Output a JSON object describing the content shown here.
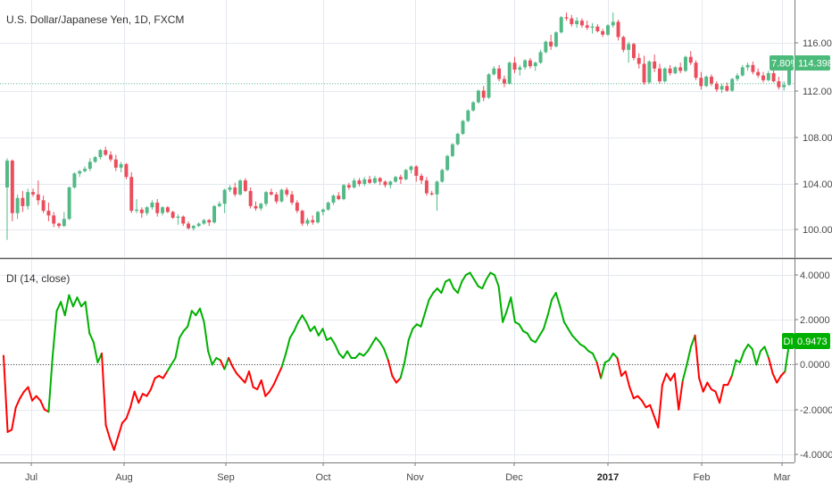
{
  "colors": {
    "up": "#53b987",
    "down": "#eb4d5c",
    "di_up": "#00b000",
    "di_down": "#ff0000",
    "tag_green": "#4cba7a",
    "di_tag": "#00b000"
  },
  "price_title": "U.S. Dollar/Japanese Yen, 1D, FXCM",
  "di_title": "DI (14, close)",
  "price_tag": {
    "pct": "7.80%",
    "value": "114.398"
  },
  "di_tag": {
    "label": "DI",
    "value": "0.9473"
  },
  "price_ticks": [
    "116.000",
    "112.000",
    "108.000",
    "104.000",
    "100.000"
  ],
  "di_ticks": [
    "4.0000",
    "2.0000",
    "0.0000",
    "-2.0000",
    "-4.0000"
  ],
  "months": [
    {
      "label": "Jul",
      "bold": false
    },
    {
      "label": "Aug",
      "bold": false
    },
    {
      "label": "Sep",
      "bold": false
    },
    {
      "label": "Oct",
      "bold": false
    },
    {
      "label": "Nov",
      "bold": false
    },
    {
      "label": "Dec",
      "bold": false
    },
    {
      "label": "2017",
      "bold": true
    },
    {
      "label": "Feb",
      "bold": false
    },
    {
      "label": "Mar",
      "bold": false
    }
  ],
  "chart_data": [
    {
      "type": "candlestick",
      "title": "U.S. Dollar/Japanese Yen, 1D, FXCM",
      "ylim": [
        98.0,
        119.5
      ],
      "reference_level": 112.5,
      "last_value": 114.398,
      "candles": [
        [
          103.6,
          106.1,
          99.1,
          105.9
        ],
        [
          105.9,
          106.0,
          100.7,
          101.4
        ],
        [
          101.4,
          103.0,
          100.9,
          102.7
        ],
        [
          102.7,
          103.3,
          101.5,
          102.0
        ],
        [
          102.0,
          103.5,
          101.7,
          103.2
        ],
        [
          103.2,
          103.5,
          102.8,
          103.0
        ],
        [
          103.0,
          104.2,
          102.1,
          102.5
        ],
        [
          102.5,
          102.9,
          101.4,
          101.6
        ],
        [
          101.6,
          102.3,
          100.7,
          101.2
        ],
        [
          101.2,
          101.5,
          100.2,
          100.5
        ],
        [
          100.5,
          100.6,
          100.1,
          100.3
        ],
        [
          100.3,
          101.5,
          100.2,
          100.9
        ],
        [
          100.9,
          103.7,
          100.8,
          103.6
        ],
        [
          103.6,
          104.9,
          103.5,
          104.8
        ],
        [
          104.8,
          105.1,
          104.5,
          105.0
        ],
        [
          105.0,
          105.4,
          104.9,
          105.2
        ],
        [
          105.2,
          106.1,
          105.0,
          105.8
        ],
        [
          105.8,
          106.3,
          105.7,
          106.2
        ],
        [
          106.2,
          106.9,
          106.0,
          106.8
        ],
        [
          106.8,
          107.1,
          106.3,
          106.4
        ],
        [
          106.4,
          106.7,
          105.8,
          106.0
        ],
        [
          106.0,
          106.4,
          105.0,
          105.3
        ],
        [
          105.3,
          105.8,
          104.9,
          105.6
        ],
        [
          105.6,
          105.7,
          104.3,
          104.5
        ],
        [
          104.5,
          104.9,
          101.4,
          101.6
        ],
        [
          101.6,
          102.6,
          101.4,
          101.7
        ],
        [
          101.7,
          101.9,
          101.0,
          101.4
        ],
        [
          101.4,
          102.0,
          101.2,
          101.9
        ],
        [
          101.9,
          102.5,
          101.7,
          102.3
        ],
        [
          102.3,
          102.6,
          101.1,
          101.4
        ],
        [
          101.4,
          102.0,
          101.2,
          101.9
        ],
        [
          101.9,
          102.0,
          101.4,
          101.5
        ],
        [
          101.5,
          101.6,
          100.9,
          101.0
        ],
        [
          101.0,
          101.3,
          100.4,
          101.1
        ],
        [
          101.1,
          101.2,
          100.3,
          100.5
        ],
        [
          100.5,
          100.7,
          100.0,
          100.1
        ],
        [
          100.1,
          100.4,
          99.9,
          100.3
        ],
        [
          100.3,
          100.6,
          100.2,
          100.5
        ],
        [
          100.5,
          100.9,
          100.4,
          100.8
        ],
        [
          100.8,
          100.9,
          100.3,
          100.6
        ],
        [
          100.6,
          102.1,
          100.5,
          102.0
        ],
        [
          102.0,
          102.4,
          101.9,
          102.2
        ],
        [
          102.2,
          103.5,
          101.4,
          103.4
        ],
        [
          103.4,
          103.8,
          103.2,
          103.6
        ],
        [
          103.6,
          104.0,
          102.8,
          103.0
        ],
        [
          103.0,
          104.3,
          102.9,
          104.2
        ],
        [
          104.2,
          104.4,
          103.2,
          103.3
        ],
        [
          103.3,
          103.6,
          101.8,
          102.0
        ],
        [
          102.0,
          102.4,
          101.6,
          101.8
        ],
        [
          101.8,
          102.3,
          101.6,
          102.2
        ],
        [
          102.2,
          103.3,
          102.0,
          103.2
        ],
        [
          103.2,
          103.5,
          102.9,
          103.0
        ],
        [
          103.0,
          103.2,
          102.2,
          102.4
        ],
        [
          102.4,
          103.5,
          102.3,
          103.4
        ],
        [
          103.4,
          103.6,
          102.8,
          103.0
        ],
        [
          103.0,
          103.3,
          102.1,
          102.3
        ],
        [
          102.3,
          102.5,
          101.4,
          101.6
        ],
        [
          101.6,
          101.7,
          100.3,
          100.5
        ],
        [
          100.5,
          101.0,
          100.3,
          100.8
        ],
        [
          100.8,
          101.2,
          100.4,
          100.6
        ],
        [
          100.6,
          101.6,
          100.5,
          101.5
        ],
        [
          101.5,
          101.8,
          101.2,
          101.7
        ],
        [
          101.7,
          102.4,
          101.6,
          102.3
        ],
        [
          102.3,
          103.0,
          102.1,
          102.9
        ],
        [
          102.9,
          103.2,
          102.5,
          102.6
        ],
        [
          102.6,
          103.9,
          102.5,
          103.8
        ],
        [
          103.8,
          104.0,
          103.4,
          103.6
        ],
        [
          103.6,
          104.4,
          103.5,
          104.2
        ],
        [
          104.2,
          104.4,
          103.7,
          103.9
        ],
        [
          103.9,
          104.5,
          103.7,
          104.3
        ],
        [
          104.3,
          104.6,
          103.9,
          104.0
        ],
        [
          104.0,
          104.6,
          103.9,
          104.4
        ],
        [
          104.4,
          104.5,
          103.8,
          104.1
        ],
        [
          104.1,
          104.2,
          103.6,
          103.8
        ],
        [
          103.8,
          104.2,
          103.5,
          104.1
        ],
        [
          104.1,
          104.6,
          104.0,
          104.5
        ],
        [
          104.5,
          104.7,
          103.9,
          104.3
        ],
        [
          104.3,
          105.2,
          104.2,
          105.1
        ],
        [
          105.1,
          105.5,
          104.8,
          105.4
        ],
        [
          105.4,
          105.5,
          104.1,
          104.6
        ],
        [
          104.6,
          104.8,
          103.9,
          104.2
        ],
        [
          104.2,
          104.5,
          102.9,
          103.1
        ],
        [
          103.1,
          103.3,
          102.9,
          103.0
        ],
        [
          103.0,
          104.2,
          101.6,
          104.1
        ],
        [
          104.1,
          105.2,
          104.0,
          105.1
        ],
        [
          105.1,
          106.4,
          105.0,
          106.3
        ],
        [
          106.3,
          107.4,
          106.2,
          107.3
        ],
        [
          107.3,
          108.3,
          107.2,
          108.2
        ],
        [
          108.2,
          109.4,
          108.1,
          109.3
        ],
        [
          109.3,
          110.3,
          109.2,
          110.2
        ],
        [
          110.2,
          111.0,
          110.1,
          110.9
        ],
        [
          110.9,
          112.0,
          110.8,
          111.9
        ],
        [
          111.9,
          112.3,
          111.0,
          111.3
        ],
        [
          111.3,
          113.4,
          111.2,
          113.3
        ],
        [
          113.3,
          114.0,
          113.2,
          113.8
        ],
        [
          113.8,
          114.1,
          112.7,
          112.9
        ],
        [
          112.9,
          113.2,
          112.2,
          112.5
        ],
        [
          112.5,
          114.4,
          112.4,
          114.3
        ],
        [
          114.3,
          114.8,
          113.4,
          113.7
        ],
        [
          113.7,
          114.1,
          113.2,
          113.9
        ],
        [
          113.9,
          114.6,
          113.7,
          114.5
        ],
        [
          114.5,
          114.7,
          113.8,
          114.0
        ],
        [
          114.0,
          114.4,
          113.6,
          114.3
        ],
        [
          114.3,
          115.4,
          114.2,
          115.2
        ],
        [
          115.2,
          116.2,
          115.1,
          116.1
        ],
        [
          116.1,
          116.7,
          115.4,
          115.7
        ],
        [
          115.7,
          117.0,
          115.6,
          116.9
        ],
        [
          116.9,
          118.3,
          116.8,
          118.2
        ],
        [
          118.2,
          118.6,
          117.9,
          118.1
        ],
        [
          118.1,
          118.4,
          117.4,
          117.6
        ],
        [
          117.6,
          118.2,
          117.3,
          117.9
        ],
        [
          117.9,
          118.1,
          117.3,
          117.5
        ],
        [
          117.5,
          117.9,
          117.1,
          117.3
        ],
        [
          117.3,
          117.7,
          116.8,
          117.4
        ],
        [
          117.4,
          117.6,
          116.9,
          117.0
        ],
        [
          117.0,
          117.2,
          116.5,
          116.7
        ],
        [
          116.7,
          117.6,
          116.6,
          117.5
        ],
        [
          117.5,
          118.6,
          117.3,
          117.8
        ],
        [
          117.8,
          118.0,
          116.2,
          116.5
        ],
        [
          116.5,
          116.6,
          115.2,
          115.4
        ],
        [
          115.4,
          116.1,
          114.3,
          115.9
        ],
        [
          115.9,
          116.0,
          114.5,
          114.7
        ],
        [
          114.7,
          115.1,
          113.8,
          114.2
        ],
        [
          114.2,
          114.9,
          112.4,
          112.6
        ],
        [
          112.6,
          114.5,
          112.5,
          114.4
        ],
        [
          114.4,
          115.0,
          113.5,
          113.8
        ],
        [
          113.8,
          114.2,
          112.5,
          112.7
        ],
        [
          112.7,
          113.9,
          112.6,
          113.8
        ],
        [
          113.8,
          114.1,
          113.2,
          113.4
        ],
        [
          113.4,
          114.0,
          113.3,
          113.9
        ],
        [
          113.9,
          114.3,
          113.4,
          113.6
        ],
        [
          113.6,
          114.9,
          113.5,
          114.8
        ],
        [
          114.8,
          115.3,
          114.1,
          114.3
        ],
        [
          114.3,
          114.5,
          112.8,
          113.0
        ],
        [
          113.0,
          113.5,
          112.0,
          112.3
        ],
        [
          112.3,
          113.2,
          112.2,
          113.1
        ],
        [
          113.1,
          113.3,
          112.3,
          112.5
        ],
        [
          112.5,
          112.7,
          111.8,
          112.0
        ],
        [
          112.0,
          112.5,
          111.7,
          112.3
        ],
        [
          112.3,
          112.6,
          111.8,
          111.9
        ],
        [
          111.9,
          113.0,
          111.8,
          112.9
        ],
        [
          112.9,
          113.4,
          112.7,
          113.2
        ],
        [
          113.2,
          114.1,
          113.1,
          113.9
        ],
        [
          113.9,
          114.3,
          113.6,
          114.1
        ],
        [
          114.1,
          114.4,
          113.3,
          113.5
        ],
        [
          113.5,
          113.8,
          113.0,
          113.2
        ],
        [
          113.2,
          113.5,
          112.6,
          112.8
        ],
        [
          112.8,
          113.6,
          112.7,
          113.4
        ],
        [
          113.4,
          113.7,
          112.6,
          112.7
        ],
        [
          112.7,
          113.1,
          112.0,
          112.2
        ],
        [
          112.2,
          112.7,
          111.9,
          112.4
        ],
        [
          112.4,
          114.5,
          112.3,
          114.4
        ]
      ]
    },
    {
      "type": "line",
      "title": "DI (14, close)",
      "ylim": [
        -4.3,
        4.6
      ],
      "reference_level": 0,
      "last_value": 0.9473,
      "values": [
        0.4,
        -3.0,
        -2.9,
        -1.9,
        -1.5,
        -1.2,
        -1.0,
        -1.6,
        -1.4,
        -1.6,
        -2.0,
        -2.1,
        0.4,
        2.4,
        2.8,
        2.2,
        3.1,
        2.6,
        3.0,
        2.6,
        2.8,
        1.4,
        1.0,
        0.1,
        0.5,
        -2.7,
        -3.3,
        -3.8,
        -3.2,
        -2.6,
        -2.4,
        -1.9,
        -1.2,
        -1.7,
        -1.3,
        -1.4,
        -1.1,
        -0.6,
        -0.5,
        -0.6,
        -0.3,
        0.0,
        0.3,
        1.2,
        1.5,
        1.7,
        2.4,
        2.2,
        2.5,
        1.9,
        0.6,
        0.0,
        0.3,
        0.2,
        -0.2,
        0.3,
        -0.1,
        -0.4,
        -0.6,
        -0.8,
        -0.3,
        -1.0,
        -1.1,
        -0.7,
        -1.4,
        -1.2,
        -0.9,
        -0.5,
        -0.1,
        0.5,
        1.2,
        1.5,
        1.9,
        2.2,
        1.9,
        1.5,
        1.7,
        1.3,
        1.6,
        1.1,
        1.2,
        0.9,
        0.5,
        0.3,
        0.6,
        0.3,
        0.3,
        0.5,
        0.4,
        0.6,
        0.9,
        1.2,
        1.0,
        0.7,
        0.2,
        -0.5,
        -0.8,
        -0.6,
        0.1,
        1.1,
        1.6,
        1.8,
        1.7,
        2.3,
        2.9,
        3.2,
        3.4,
        3.2,
        3.7,
        3.8,
        3.4,
        3.2,
        3.7,
        4.0,
        4.1,
        3.8,
        3.5,
        3.4,
        3.8,
        4.1,
        4.0,
        3.5,
        1.9,
        2.4,
        3.0,
        1.9,
        1.8,
        1.5,
        1.4,
        1.1,
        1.0,
        1.3,
        1.6,
        2.2,
        2.9,
        3.2,
        2.6,
        1.9,
        1.6,
        1.3,
        1.1,
        0.9,
        0.8,
        0.6,
        0.5,
        0.1,
        -0.6,
        0.1,
        0.2,
        0.5,
        0.3,
        -0.5,
        -0.3,
        -1.0,
        -1.5,
        -1.4,
        -1.6,
        -1.9,
        -1.8,
        -2.3,
        -2.8,
        -0.9,
        -0.4,
        -0.7,
        -0.4,
        -2.0,
        -0.7,
        0.0,
        0.8,
        1.3,
        -0.6,
        -1.2,
        -0.8,
        -1.1,
        -1.2,
        -1.7,
        -0.9,
        -0.9,
        -0.5,
        0.2,
        0.1,
        0.6,
        0.9,
        0.7,
        0.0,
        0.6,
        0.8,
        0.3,
        -0.4,
        -0.8,
        -0.5,
        -0.3,
        0.9473
      ]
    }
  ]
}
